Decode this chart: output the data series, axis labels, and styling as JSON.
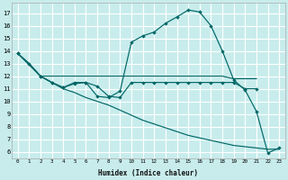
{
  "xlabel": "Humidex (Indice chaleur)",
  "bg_color": "#c8ecec",
  "grid_color": "#ffffff",
  "line_color": "#006666",
  "xlim": [
    -0.5,
    23.5
  ],
  "ylim": [
    5.5,
    17.8
  ],
  "yticks": [
    6,
    7,
    8,
    9,
    10,
    11,
    12,
    13,
    14,
    15,
    16,
    17
  ],
  "xticks": [
    0,
    1,
    2,
    3,
    4,
    5,
    6,
    7,
    8,
    9,
    10,
    11,
    12,
    13,
    14,
    15,
    16,
    17,
    18,
    19,
    20,
    21,
    22,
    23
  ],
  "line1_x": [
    0,
    1,
    2,
    3,
    4,
    5,
    6,
    7,
    8,
    9,
    10,
    11,
    12,
    13,
    14,
    15,
    16,
    17,
    18,
    19,
    20,
    21,
    22,
    23
  ],
  "line1_y": [
    13.8,
    13.0,
    12.0,
    11.5,
    11.1,
    11.5,
    11.5,
    10.4,
    10.3,
    10.8,
    14.7,
    15.2,
    15.5,
    16.2,
    16.7,
    17.25,
    17.1,
    16.0,
    14.0,
    11.7,
    10.9,
    9.2,
    5.9,
    6.3
  ],
  "line2_x": [
    0,
    1,
    2,
    3,
    4,
    5,
    6,
    7,
    8,
    9,
    10,
    11,
    12,
    13,
    14,
    15,
    16,
    17,
    18,
    19,
    20,
    21
  ],
  "line2_y": [
    13.8,
    13.0,
    12.0,
    12.0,
    12.0,
    12.0,
    12.0,
    12.0,
    12.0,
    12.0,
    12.0,
    12.0,
    12.0,
    12.0,
    12.0,
    12.0,
    12.0,
    12.0,
    12.0,
    11.8,
    11.8,
    11.8
  ],
  "line3_x": [
    0,
    2,
    3,
    4,
    5,
    6,
    7,
    8,
    9,
    10,
    11,
    12,
    13,
    14,
    15,
    16,
    17,
    18,
    19,
    20,
    21
  ],
  "line3_y": [
    13.8,
    12.0,
    11.5,
    11.1,
    11.4,
    11.5,
    11.2,
    10.4,
    10.3,
    11.5,
    11.5,
    11.5,
    11.5,
    11.5,
    11.5,
    11.5,
    11.5,
    11.5,
    11.5,
    11.0,
    11.0
  ],
  "line4_x": [
    0,
    1,
    2,
    3,
    4,
    5,
    6,
    7,
    8,
    9,
    10,
    11,
    12,
    13,
    14,
    15,
    16,
    17,
    18,
    19,
    20,
    21,
    22,
    23
  ],
  "line4_y": [
    13.8,
    13.0,
    12.0,
    11.5,
    11.0,
    10.7,
    10.3,
    10.0,
    9.7,
    9.3,
    8.9,
    8.5,
    8.2,
    7.9,
    7.6,
    7.3,
    7.1,
    6.9,
    6.7,
    6.5,
    6.4,
    6.3,
    6.2,
    6.2
  ]
}
